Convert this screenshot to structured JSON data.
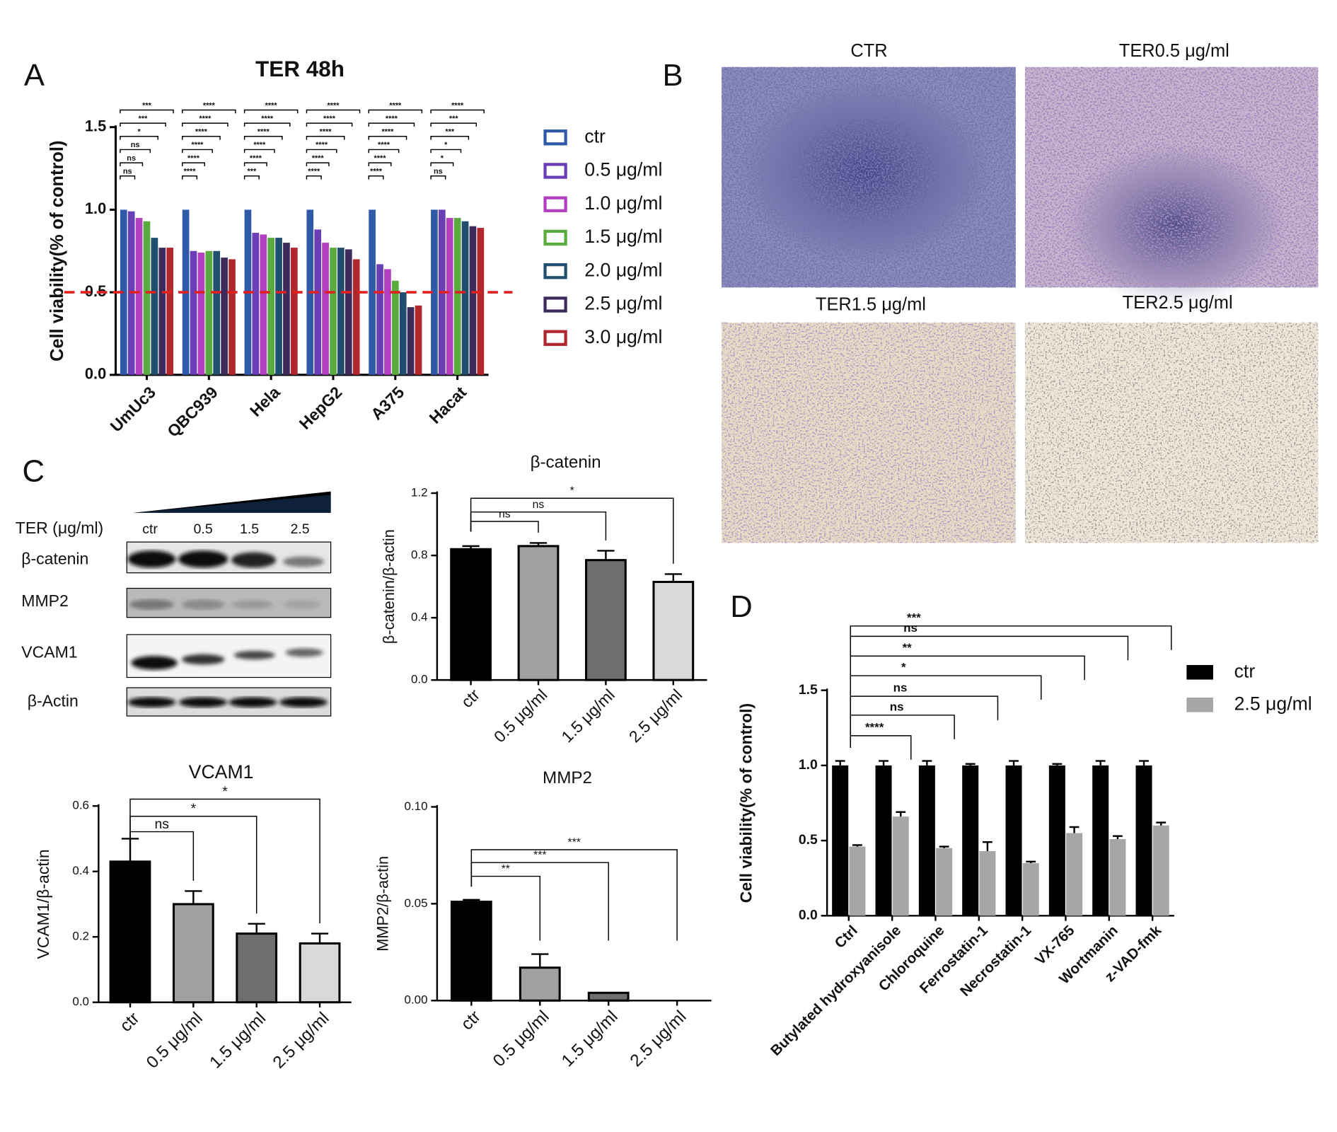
{
  "panel_labels": [
    "A",
    "B",
    "C",
    "D"
  ],
  "micrographs": [
    "CTR",
    "TER0.5 μg/ml",
    "TER1.5 μg/ml",
    "TER2.5 μg/ml"
  ],
  "western_blot": {
    "treatment_label": "TER (μg/ml)",
    "lanes": [
      "ctr",
      "0.5",
      "1.5",
      "2.5"
    ],
    "proteins": [
      "β-catenin",
      "MMP2",
      "VCAM1",
      "β-Actin"
    ]
  },
  "chart_data": [
    {
      "type": "bar",
      "title": "TER 48h",
      "y_label": "Cell viability(% of control)",
      "categories": [
        "UmUc3",
        "QBC939",
        "Hela",
        "HepG2",
        "A375",
        "Hacat"
      ],
      "series": [
        {
          "name": "ctr",
          "color": "#2f5aa8",
          "values": [
            1.0,
            1.0,
            1.0,
            1.0,
            1.0,
            1.0
          ]
        },
        {
          "name": "0.5 μg/ml",
          "color": "#6a3fb5",
          "values": [
            0.99,
            0.75,
            0.86,
            0.88,
            0.67,
            1.0
          ]
        },
        {
          "name": "1.0 μg/ml",
          "color": "#b23fc0",
          "values": [
            0.95,
            0.74,
            0.85,
            0.8,
            0.64,
            0.95
          ]
        },
        {
          "name": "1.5 μg/ml",
          "color": "#5aab3f",
          "values": [
            0.93,
            0.75,
            0.83,
            0.77,
            0.57,
            0.95
          ]
        },
        {
          "name": "2.0 μg/ml",
          "color": "#1f4e6e",
          "values": [
            0.83,
            0.75,
            0.83,
            0.77,
            0.5,
            0.93
          ]
        },
        {
          "name": "2.5 μg/ml",
          "color": "#3e2b5e",
          "values": [
            0.77,
            0.71,
            0.8,
            0.76,
            0.41,
            0.9
          ]
        },
        {
          "name": "3.0 μg/ml",
          "color": "#b0282e",
          "values": [
            0.77,
            0.7,
            0.77,
            0.7,
            0.42,
            0.89
          ]
        }
      ],
      "ylim": [
        0,
        1.5
      ],
      "yticks": [
        {
          "value": 0,
          "label": "0.0"
        },
        0.5,
        {
          "value": 1,
          "label": "1.0"
        },
        1.5
      ],
      "reference_line": {
        "value": 0.5,
        "color": "#e02020",
        "style": "dashed"
      },
      "significance": [
        [
          "ns",
          "ns",
          "ns",
          "*",
          "***",
          "***"
        ],
        [
          "****",
          "****",
          "****",
          "****",
          "****",
          "****"
        ],
        [
          "***",
          "****",
          "****",
          "****",
          "****",
          "****"
        ],
        [
          "****",
          "****",
          "****",
          "****",
          "****",
          "****"
        ],
        [
          "****",
          "****",
          "****",
          "****",
          "****",
          "****"
        ],
        [
          "ns",
          "*",
          "*",
          "***",
          "***",
          "****"
        ]
      ],
      "legend": "right",
      "legend_marker": "outline",
      "grid": false
    },
    {
      "type": "bar",
      "title": "β-catenin",
      "y_label": "β-catenin/β-actin",
      "categories": [
        "ctr",
        "0.5 μg/ml",
        "1.5 μg/ml",
        "2.5 μg/ml"
      ],
      "values": [
        0.84,
        0.86,
        0.77,
        0.63
      ],
      "errors": [
        0.02,
        0.02,
        0.06,
        0.05
      ],
      "colors": [
        "#000000",
        "#a0a0a0",
        "#6e6e6e",
        "#d9d9d9"
      ],
      "ylim": [
        0,
        1.2
      ],
      "yticks": [
        {
          "value": 0,
          "label": "0.0"
        },
        0.4,
        0.8,
        1.2
      ],
      "significance": [
        "ns",
        "ns",
        "*"
      ],
      "grid": false
    },
    {
      "type": "bar",
      "title": "VCAM1",
      "y_label": "VCAM1/β-actin",
      "categories": [
        "ctr",
        "0.5 μg/ml",
        "1.5 μg/ml",
        "2.5 μg/ml"
      ],
      "values": [
        0.43,
        0.3,
        0.21,
        0.18
      ],
      "errors": [
        0.07,
        0.04,
        0.03,
        0.03
      ],
      "colors": [
        "#000000",
        "#a0a0a0",
        "#6e6e6e",
        "#d9d9d9"
      ],
      "ylim": [
        0,
        0.6
      ],
      "yticks": [
        {
          "value": 0,
          "label": "0.0"
        },
        0.2,
        0.4,
        0.6
      ],
      "significance": [
        "ns",
        "*",
        "*"
      ],
      "grid": false
    },
    {
      "type": "bar",
      "title": "MMP2",
      "y_label": "MMP2/β-actin",
      "categories": [
        "ctr",
        "0.5 μg/ml",
        "1.5 μg/ml",
        "2.5 μg/ml"
      ],
      "values": [
        0.051,
        0.017,
        0.004,
        0
      ],
      "errors": [
        0.001,
        0.007,
        0,
        0
      ],
      "colors": [
        "#000000",
        "#a0a0a0",
        "#6e6e6e",
        "#d9d9d9"
      ],
      "ylim": [
        0,
        0.1
      ],
      "yticks": [
        {
          "value": 0,
          "label": "0.00"
        },
        0.05,
        {
          "value": 0.1,
          "label": "0.10"
        }
      ],
      "significance": [
        "**",
        "***",
        "***"
      ],
      "grid": false
    },
    {
      "type": "bar",
      "y_label": "Cell viability(% of control)",
      "categories": [
        "Ctrl",
        "Butylated hydroxyanisole",
        "Chloroquine",
        "Ferrostatin-1",
        "Necrostatin-1",
        "VX-765",
        "Wortmanin",
        "z-VAD-fmk"
      ],
      "series": [
        {
          "name": "ctr",
          "color": "#000000",
          "values": [
            1.0,
            1.0,
            1.0,
            1.0,
            1.0,
            1.0,
            1.0,
            1.0
          ],
          "errors": [
            0.03,
            0.03,
            0.03,
            0.01,
            0.03,
            0.01,
            0.03,
            0.03
          ]
        },
        {
          "name": "2.5 μg/ml",
          "color": "#a6a6a6",
          "values": [
            0.46,
            0.66,
            0.45,
            0.43,
            0.35,
            0.55,
            0.51,
            0.6
          ],
          "errors": [
            0.01,
            0.03,
            0.01,
            0.06,
            0.01,
            0.04,
            0.02,
            0.02
          ]
        }
      ],
      "ylim": [
        0,
        1.5
      ],
      "yticks": [
        {
          "value": 0,
          "label": "0.0"
        },
        0.5,
        {
          "value": 1,
          "label": "1.0"
        },
        1.5
      ],
      "significance": [
        "****",
        "ns",
        "ns",
        "*",
        "**",
        "ns",
        "***"
      ],
      "legend": "right",
      "legend_marker": "filled",
      "grid": false
    }
  ]
}
